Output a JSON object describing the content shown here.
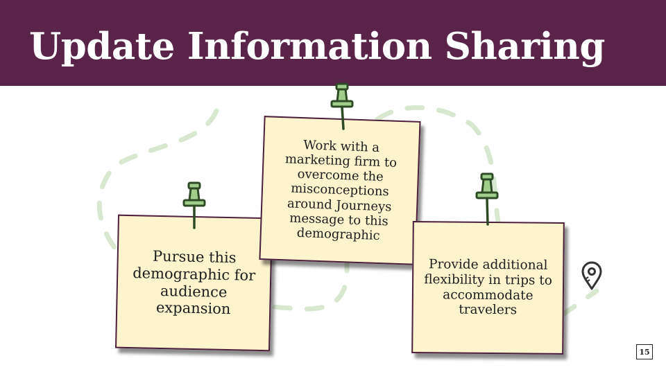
{
  "slide": {
    "title": "Update Information Sharing",
    "page_number": "15"
  },
  "notes": [
    {
      "text": "Pursue this demographic for audience expansion"
    },
    {
      "text": "Work with a marketing firm to overcome the misconceptions around Journeys message to this demographic"
    },
    {
      "text": "Provide additional flexibility in trips to accommodate travelers"
    }
  ],
  "colors": {
    "header_bg": "#5a2449",
    "note_bg": "#fdf3cd",
    "path_dash": "#d8e8d0",
    "pin": "#2d4a24"
  },
  "icons": {
    "pin": "pushpin-icon",
    "location": "map-pin-icon"
  }
}
